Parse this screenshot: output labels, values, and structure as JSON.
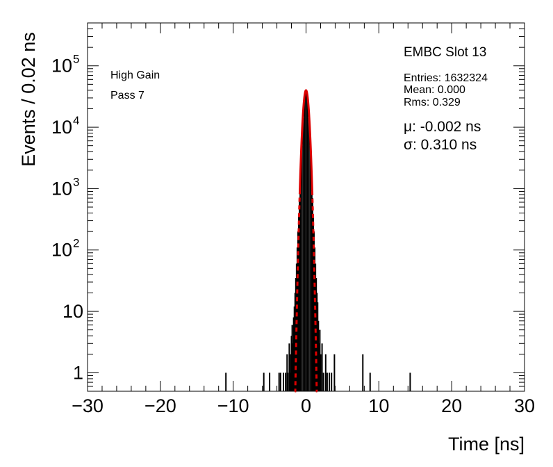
{
  "chart_data": {
    "type": "histogram",
    "xlabel": "Time [ns]",
    "ylabel": "Events / 0.02 ns",
    "xlim": [
      -30,
      30
    ],
    "ylim": [
      0.5,
      500000
    ],
    "yscale": "log",
    "grid": false,
    "x_ticks": [
      {
        "value": -30,
        "label": "−30"
      },
      {
        "value": -20,
        "label": "−20"
      },
      {
        "value": -10,
        "label": "−10"
      },
      {
        "value": 0,
        "label": "0"
      },
      {
        "value": 10,
        "label": "10"
      },
      {
        "value": 20,
        "label": "20"
      },
      {
        "value": 30,
        "label": "30"
      }
    ],
    "y_ticks": [
      {
        "value": 1,
        "base": "1",
        "exp": ""
      },
      {
        "value": 10,
        "base": "10",
        "exp": ""
      },
      {
        "value": 100,
        "base": "10",
        "exp": "2"
      },
      {
        "value": 1000,
        "base": "10",
        "exp": "3"
      },
      {
        "value": 10000,
        "base": "10",
        "exp": "4"
      },
      {
        "value": 100000,
        "base": "10",
        "exp": "5"
      }
    ],
    "bin_width": 0.02,
    "histogram_color": "#000000",
    "fit": {
      "type": "gaussian",
      "mean": -0.002,
      "sigma": 0.31,
      "peak": 40000,
      "solid_range": [
        -0.85,
        0.85
      ],
      "dashed_range": [
        -1.55,
        1.55
      ],
      "color": "#dd0000"
    },
    "peak_bins": [
      {
        "x": -0.9,
        "y": 700
      },
      {
        "x": -0.8,
        "y": 1500
      },
      {
        "x": -0.6,
        "y": 5000
      },
      {
        "x": -0.4,
        "y": 14000
      },
      {
        "x": -0.2,
        "y": 30000
      },
      {
        "x": 0.0,
        "y": 40000
      },
      {
        "x": 0.2,
        "y": 30000
      },
      {
        "x": 0.4,
        "y": 14000
      },
      {
        "x": 0.6,
        "y": 5000
      },
      {
        "x": 0.8,
        "y": 1500
      },
      {
        "x": 0.9,
        "y": 700
      }
    ],
    "tail_bins": [
      {
        "x": -11.0,
        "y": 1
      },
      {
        "x": -5.8,
        "y": 1
      },
      {
        "x": -5.0,
        "y": 1
      },
      {
        "x": -3.7,
        "y": 1
      },
      {
        "x": -3.5,
        "y": 1
      },
      {
        "x": -3.1,
        "y": 1
      },
      {
        "x": -2.8,
        "y": 1
      },
      {
        "x": -2.6,
        "y": 2
      },
      {
        "x": -2.5,
        "y": 1
      },
      {
        "x": -2.3,
        "y": 3
      },
      {
        "x": -2.2,
        "y": 1
      },
      {
        "x": -2.1,
        "y": 2
      },
      {
        "x": -2.0,
        "y": 4
      },
      {
        "x": -1.9,
        "y": 6
      },
      {
        "x": -1.8,
        "y": 3
      },
      {
        "x": -1.7,
        "y": 8
      },
      {
        "x": -1.6,
        "y": 12
      },
      {
        "x": -1.5,
        "y": 20
      },
      {
        "x": -1.4,
        "y": 35
      },
      {
        "x": -1.3,
        "y": 60
      },
      {
        "x": -1.2,
        "y": 110
      },
      {
        "x": -1.1,
        "y": 200
      },
      {
        "x": -1.0,
        "y": 380
      },
      {
        "x": 1.0,
        "y": 380
      },
      {
        "x": 1.1,
        "y": 200
      },
      {
        "x": 1.2,
        "y": 110
      },
      {
        "x": 1.3,
        "y": 60
      },
      {
        "x": 1.4,
        "y": 35
      },
      {
        "x": 1.5,
        "y": 20
      },
      {
        "x": 1.6,
        "y": 14
      },
      {
        "x": 1.7,
        "y": 7
      },
      {
        "x": 1.8,
        "y": 3
      },
      {
        "x": 1.9,
        "y": 5
      },
      {
        "x": 2.0,
        "y": 2
      },
      {
        "x": 2.2,
        "y": 3
      },
      {
        "x": 2.4,
        "y": 1
      },
      {
        "x": 2.7,
        "y": 2
      },
      {
        "x": 2.9,
        "y": 1
      },
      {
        "x": 3.2,
        "y": 1
      },
      {
        "x": 3.5,
        "y": 1
      },
      {
        "x": 3.9,
        "y": 2
      },
      {
        "x": 7.8,
        "y": 2
      },
      {
        "x": 8.8,
        "y": 1
      },
      {
        "x": 14.3,
        "y": 1
      }
    ]
  },
  "stats_box": {
    "title": "EMBC Slot 13",
    "entries": "Entries: 1632324",
    "mean": "Mean: 0.000",
    "rms": "Rms: 0.329",
    "mu": "μ: -0.002 ns",
    "sigma": "σ: 0.310 ns"
  },
  "annotations": {
    "gain": "High Gain",
    "pass": "Pass 7"
  }
}
